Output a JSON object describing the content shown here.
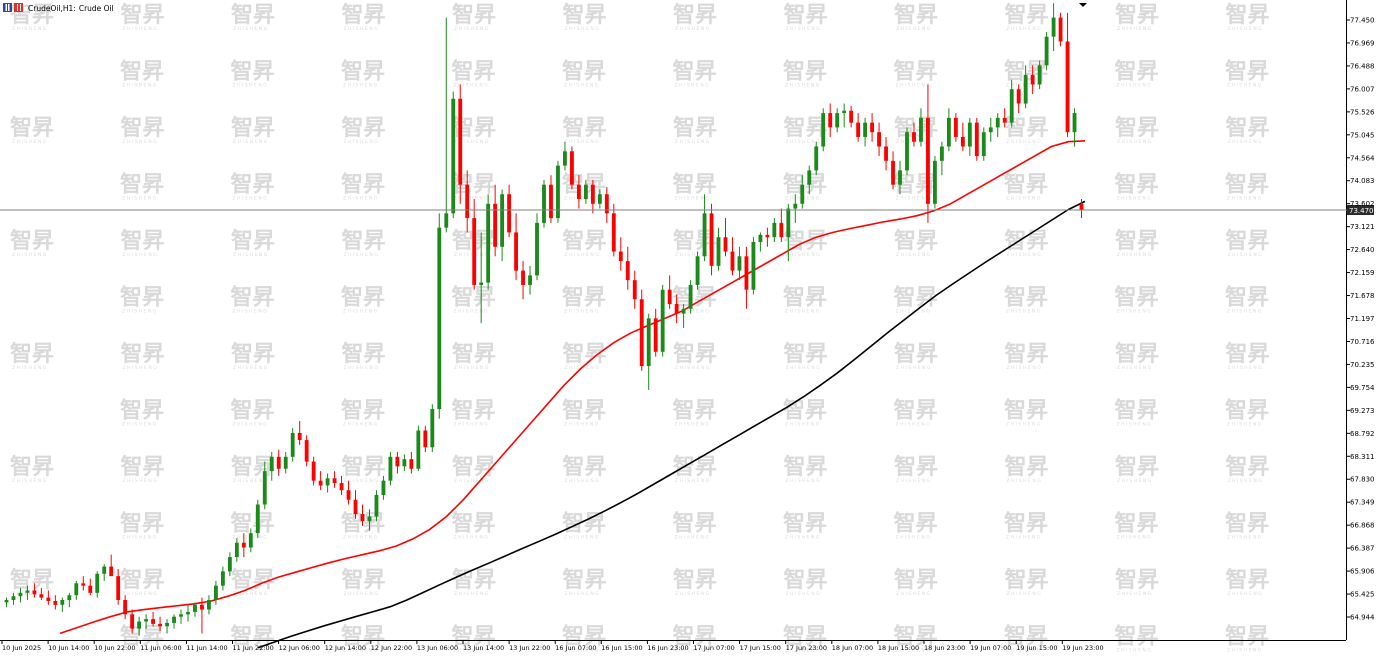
{
  "window": {
    "title_symbol": "CrudeOil,H1:",
    "title_name": "Crude Oil",
    "watermark_text": "智昇",
    "watermark_sub": "ZHISHENG"
  },
  "colors": {
    "background": "#ffffff",
    "bull": "#1a8a1a",
    "bear": "#ff0000",
    "ma_fast": "#ff0000",
    "ma_slow": "#000000",
    "price_line": "#808080",
    "price_tag_bg": "#2b2b2b",
    "watermark": "#d9d9d9"
  },
  "chart_data": {
    "type": "candlestick",
    "symbol": "CrudeOil",
    "timeframe": "H1",
    "title": "CrudeOil,H1: Crude Oil",
    "current_price": "73.470",
    "current_price_value": 73.47,
    "ylim": [
      64.5,
      77.9
    ],
    "y_ticks": [
      "77.450",
      "76.969",
      "76.488",
      "76.007",
      "75.526",
      "75.045",
      "74.564",
      "74.083",
      "73.602",
      "73.121",
      "72.640",
      "72.159",
      "71.678",
      "71.197",
      "70.716",
      "70.235",
      "69.754",
      "69.273",
      "68.792",
      "68.311",
      "67.830",
      "67.349",
      "66.868",
      "66.387",
      "65.906",
      "65.425",
      "64.944"
    ],
    "x_labels": [
      "10 Jun 2025",
      "10 Jun 14:00",
      "10 Jun 22:00",
      "11 Jun 06:00",
      "11 Jun 14:00",
      "11 Jun 22:00",
      "12 Jun 06:00",
      "12 Jun 14:00",
      "12 Jun 22:00",
      "13 Jun 06:00",
      "13 Jun 14:00",
      "13 Jun 22:00",
      "16 Jun 07:00",
      "16 Jun 15:00",
      "16 Jun 23:00",
      "17 Jun 07:00",
      "17 Jun 15:00",
      "17 Jun 23:00",
      "18 Jun 07:00",
      "18 Jun 15:00",
      "18 Jun 23:00",
      "19 Jun 07:00",
      "19 Jun 15:00",
      "19 Jun 23:00"
    ],
    "grid": false,
    "candles": [
      [
        65.25,
        65.35,
        65.15,
        65.3
      ],
      [
        65.3,
        65.45,
        65.2,
        65.38
      ],
      [
        65.38,
        65.55,
        65.25,
        65.45
      ],
      [
        65.45,
        65.6,
        65.3,
        65.5
      ],
      [
        65.5,
        65.65,
        65.35,
        65.42
      ],
      [
        65.42,
        65.55,
        65.3,
        65.35
      ],
      [
        65.35,
        65.5,
        65.2,
        65.28
      ],
      [
        65.28,
        65.4,
        65.1,
        65.2
      ],
      [
        65.2,
        65.35,
        65.05,
        65.3
      ],
      [
        65.3,
        65.45,
        65.15,
        65.4
      ],
      [
        65.4,
        65.7,
        65.3,
        65.65
      ],
      [
        65.65,
        65.8,
        65.5,
        65.6
      ],
      [
        65.6,
        65.75,
        65.4,
        65.45
      ],
      [
        65.45,
        65.9,
        65.35,
        65.85
      ],
      [
        65.85,
        66.05,
        65.7,
        66.0
      ],
      [
        66.0,
        66.25,
        65.85,
        65.8
      ],
      [
        65.8,
        65.95,
        65.2,
        65.3
      ],
      [
        65.3,
        65.4,
        64.9,
        65.0
      ],
      [
        65.0,
        65.1,
        64.6,
        64.7
      ],
      [
        64.7,
        64.95,
        64.55,
        64.85
      ],
      [
        64.85,
        65.0,
        64.7,
        64.9
      ],
      [
        64.9,
        65.05,
        64.75,
        64.8
      ],
      [
        64.8,
        64.95,
        64.65,
        64.75
      ],
      [
        64.75,
        64.9,
        64.6,
        64.82
      ],
      [
        64.82,
        65.0,
        64.7,
        64.95
      ],
      [
        64.95,
        65.1,
        64.8,
        65.0
      ],
      [
        65.0,
        65.2,
        64.85,
        65.05
      ],
      [
        65.05,
        65.25,
        64.95,
        65.2
      ],
      [
        65.2,
        65.35,
        64.6,
        65.1
      ],
      [
        65.1,
        65.4,
        65.0,
        65.3
      ],
      [
        65.3,
        65.7,
        65.2,
        65.6
      ],
      [
        65.6,
        66.0,
        65.5,
        65.9
      ],
      [
        65.9,
        66.3,
        65.8,
        66.2
      ],
      [
        66.2,
        66.6,
        66.1,
        66.5
      ],
      [
        66.5,
        66.7,
        66.2,
        66.4
      ],
      [
        66.4,
        66.8,
        66.3,
        66.7
      ],
      [
        66.7,
        67.4,
        66.6,
        67.3
      ],
      [
        67.3,
        68.2,
        67.2,
        68.0
      ],
      [
        68.0,
        68.4,
        67.8,
        68.3
      ],
      [
        68.3,
        68.45,
        67.9,
        68.05
      ],
      [
        68.05,
        68.4,
        67.95,
        68.3
      ],
      [
        68.3,
        68.9,
        68.2,
        68.8
      ],
      [
        68.8,
        69.05,
        68.55,
        68.65
      ],
      [
        68.65,
        68.75,
        68.1,
        68.2
      ],
      [
        68.2,
        68.3,
        67.7,
        67.8
      ],
      [
        67.8,
        68.0,
        67.6,
        67.7
      ],
      [
        67.7,
        67.95,
        67.55,
        67.85
      ],
      [
        67.85,
        68.0,
        67.65,
        67.75
      ],
      [
        67.75,
        67.9,
        67.5,
        67.6
      ],
      [
        67.6,
        67.8,
        67.3,
        67.4
      ],
      [
        67.4,
        67.6,
        67.0,
        67.1
      ],
      [
        67.1,
        67.3,
        66.85,
        66.95
      ],
      [
        66.95,
        67.2,
        66.75,
        67.05
      ],
      [
        67.05,
        67.6,
        66.95,
        67.5
      ],
      [
        67.5,
        67.9,
        67.4,
        67.8
      ],
      [
        67.8,
        68.4,
        67.7,
        68.3
      ],
      [
        68.3,
        68.4,
        67.95,
        68.1
      ],
      [
        68.1,
        68.35,
        68.0,
        68.25
      ],
      [
        68.25,
        68.4,
        67.95,
        68.05
      ],
      [
        68.05,
        68.95,
        68.0,
        68.85
      ],
      [
        68.85,
        68.95,
        68.4,
        68.5
      ],
      [
        68.5,
        69.4,
        68.4,
        69.3
      ],
      [
        69.3,
        73.4,
        69.1,
        73.1
      ],
      [
        73.1,
        77.5,
        73.0,
        73.4
      ],
      [
        73.4,
        75.95,
        73.3,
        75.8
      ],
      [
        75.8,
        76.1,
        73.6,
        74.0
      ],
      [
        74.0,
        74.3,
        73.0,
        73.3
      ],
      [
        73.3,
        73.7,
        71.8,
        71.9
      ],
      [
        71.9,
        73.0,
        71.1,
        71.95
      ],
      [
        71.95,
        73.8,
        71.8,
        73.6
      ],
      [
        73.6,
        74.0,
        72.5,
        72.7
      ],
      [
        72.7,
        73.9,
        72.4,
        73.8
      ],
      [
        73.8,
        74.0,
        72.9,
        73.0
      ],
      [
        73.0,
        73.4,
        72.0,
        72.2
      ],
      [
        72.2,
        72.4,
        71.6,
        71.9
      ],
      [
        71.9,
        72.3,
        71.7,
        72.1
      ],
      [
        72.1,
        73.4,
        72.0,
        73.2
      ],
      [
        73.2,
        74.1,
        73.1,
        74.0
      ],
      [
        74.0,
        74.2,
        73.2,
        73.3
      ],
      [
        73.3,
        74.5,
        73.2,
        74.4
      ],
      [
        74.4,
        74.9,
        74.3,
        74.7
      ],
      [
        74.7,
        74.8,
        73.9,
        74.0
      ],
      [
        74.0,
        74.2,
        73.5,
        73.7
      ],
      [
        73.7,
        74.1,
        73.6,
        74.0
      ],
      [
        74.0,
        74.1,
        73.4,
        73.6
      ],
      [
        73.6,
        73.9,
        73.5,
        73.8
      ],
      [
        73.8,
        73.95,
        73.2,
        73.4
      ],
      [
        73.4,
        73.6,
        72.5,
        72.6
      ],
      [
        72.6,
        72.9,
        72.2,
        72.4
      ],
      [
        72.4,
        72.7,
        71.8,
        72.0
      ],
      [
        72.0,
        72.2,
        71.4,
        71.6
      ],
      [
        71.6,
        71.8,
        70.1,
        70.2
      ],
      [
        70.2,
        71.3,
        69.7,
        71.2
      ],
      [
        71.2,
        71.4,
        70.4,
        70.5
      ],
      [
        70.5,
        71.9,
        70.4,
        71.8
      ],
      [
        71.8,
        72.1,
        71.4,
        71.5
      ],
      [
        71.5,
        71.7,
        71.1,
        71.3
      ],
      [
        71.3,
        71.5,
        71.0,
        71.4
      ],
      [
        71.4,
        72.0,
        71.3,
        71.9
      ],
      [
        71.9,
        72.6,
        71.8,
        72.5
      ],
      [
        72.5,
        73.8,
        72.4,
        73.4
      ],
      [
        73.4,
        73.6,
        72.1,
        72.3
      ],
      [
        72.3,
        73.1,
        72.2,
        72.9
      ],
      [
        72.9,
        73.3,
        72.5,
        72.6
      ],
      [
        72.6,
        72.9,
        72.1,
        72.2
      ],
      [
        72.2,
        72.7,
        72.0,
        72.5
      ],
      [
        72.5,
        72.7,
        71.4,
        71.8
      ],
      [
        71.8,
        72.9,
        71.7,
        72.8
      ],
      [
        72.8,
        73.0,
        72.6,
        72.95
      ],
      [
        72.95,
        73.1,
        72.7,
        72.9
      ],
      [
        72.9,
        73.3,
        72.8,
        73.2
      ],
      [
        73.2,
        73.5,
        72.8,
        72.9
      ],
      [
        72.9,
        73.6,
        72.4,
        73.5
      ],
      [
        73.5,
        73.8,
        73.2,
        73.6
      ],
      [
        73.6,
        74.2,
        73.5,
        74.0
      ],
      [
        74.0,
        74.4,
        73.8,
        74.3
      ],
      [
        74.3,
        74.9,
        74.2,
        74.8
      ],
      [
        74.8,
        75.6,
        74.7,
        75.5
      ],
      [
        75.5,
        75.7,
        75.0,
        75.2
      ],
      [
        75.2,
        75.6,
        75.1,
        75.5
      ],
      [
        75.5,
        75.7,
        75.2,
        75.55
      ],
      [
        75.55,
        75.65,
        75.2,
        75.3
      ],
      [
        75.3,
        75.5,
        74.9,
        75.0
      ],
      [
        75.0,
        75.4,
        74.8,
        75.3
      ],
      [
        75.3,
        75.5,
        74.9,
        75.1
      ],
      [
        75.1,
        75.3,
        74.6,
        74.8
      ],
      [
        74.8,
        75.0,
        74.3,
        74.5
      ],
      [
        74.5,
        74.7,
        73.9,
        74.0
      ],
      [
        74.0,
        74.5,
        73.8,
        74.3
      ],
      [
        74.3,
        75.2,
        74.2,
        75.1
      ],
      [
        75.1,
        75.3,
        74.8,
        74.9
      ],
      [
        74.9,
        75.6,
        74.8,
        75.4
      ],
      [
        75.4,
        76.1,
        73.2,
        73.6
      ],
      [
        73.6,
        74.6,
        73.5,
        74.5
      ],
      [
        74.5,
        74.9,
        74.2,
        74.8
      ],
      [
        74.8,
        75.6,
        74.7,
        75.4
      ],
      [
        75.4,
        75.5,
        74.9,
        75.0
      ],
      [
        75.0,
        75.3,
        74.7,
        74.8
      ],
      [
        74.8,
        75.4,
        74.6,
        75.3
      ],
      [
        75.3,
        75.4,
        74.5,
        74.6
      ],
      [
        74.6,
        75.2,
        74.5,
        75.1
      ],
      [
        75.1,
        75.4,
        74.9,
        75.2
      ],
      [
        75.2,
        75.5,
        75.0,
        75.4
      ],
      [
        75.4,
        75.6,
        75.2,
        75.3
      ],
      [
        75.3,
        76.2,
        75.2,
        76.0
      ],
      [
        76.0,
        76.1,
        75.5,
        75.7
      ],
      [
        75.7,
        76.5,
        75.6,
        76.3
      ],
      [
        76.3,
        76.5,
        75.9,
        76.1
      ],
      [
        76.1,
        76.6,
        76.0,
        76.5
      ],
      [
        76.5,
        77.2,
        76.4,
        77.1
      ],
      [
        77.1,
        77.8,
        76.8,
        77.5
      ],
      [
        77.5,
        77.6,
        76.9,
        77.0
      ],
      [
        77.0,
        77.6,
        75.0,
        75.1
      ],
      [
        75.1,
        75.6,
        74.8,
        75.5
      ],
      [
        73.6,
        73.7,
        73.3,
        73.47
      ]
    ],
    "series": [
      {
        "name": "MA fast",
        "values": [
          64.6,
          64.72,
          64.84,
          64.95,
          65.05,
          65.1,
          65.14,
          65.18,
          65.22,
          65.28,
          65.38,
          65.5,
          65.65,
          65.78,
          65.88,
          65.98,
          66.08,
          66.17,
          66.25,
          66.33,
          66.43,
          66.58,
          66.78,
          67.05,
          67.4,
          67.8,
          68.2,
          68.6,
          69.0,
          69.4,
          69.8,
          70.15,
          70.45,
          70.7,
          70.9,
          71.05,
          71.2,
          71.35,
          71.55,
          71.75,
          71.95,
          72.15,
          72.35,
          72.55,
          72.75,
          72.9,
          73.0,
          73.08,
          73.15,
          73.22,
          73.28,
          73.35,
          73.45,
          73.6,
          73.8,
          74.0,
          74.2,
          74.4,
          74.6,
          74.8,
          74.9,
          74.92
        ]
      },
      {
        "name": "MA slow",
        "values": [
          64.3,
          64.42,
          64.54,
          64.65,
          64.76,
          64.86,
          64.96,
          65.06,
          65.16,
          65.3,
          65.46,
          65.62,
          65.78,
          65.93,
          66.08,
          66.23,
          66.38,
          66.53,
          66.68,
          66.84,
          67.0,
          67.17,
          67.35,
          67.54,
          67.74,
          67.94,
          68.14,
          68.34,
          68.54,
          68.74,
          68.94,
          69.14,
          69.34,
          69.56,
          69.8,
          70.05,
          70.32,
          70.6,
          70.88,
          71.15,
          71.42,
          71.68,
          71.92,
          72.15,
          72.38,
          72.6,
          72.82,
          73.04,
          73.26,
          73.48,
          73.65
        ]
      }
    ]
  }
}
